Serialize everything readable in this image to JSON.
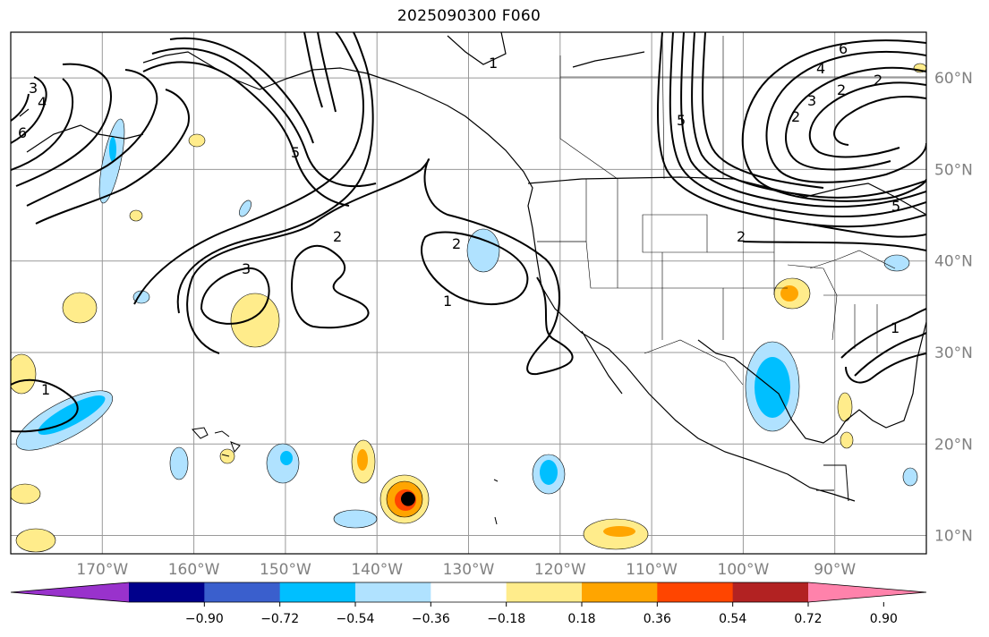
{
  "title": "2025090300 F060",
  "map": {
    "projection": "PlateCarree",
    "extent_lon": [
      -180,
      -80
    ],
    "extent_lat": [
      8,
      65
    ],
    "gridlines": true,
    "lon_ticks": [
      {
        "lon": -170,
        "label": "170°W"
      },
      {
        "lon": -160,
        "label": "160°W"
      },
      {
        "lon": -150,
        "label": "150°W"
      },
      {
        "lon": -140,
        "label": "140°W"
      },
      {
        "lon": -130,
        "label": "130°W"
      },
      {
        "lon": -120,
        "label": "120°W"
      },
      {
        "lon": -110,
        "label": "110°W"
      },
      {
        "lon": -100,
        "label": "100°W"
      },
      {
        "lon": -90,
        "label": "90°W"
      }
    ],
    "lat_ticks": [
      {
        "lat": 10,
        "label": "10°N"
      },
      {
        "lat": 20,
        "label": "20°N"
      },
      {
        "lat": 30,
        "label": "30°N"
      },
      {
        "lat": 40,
        "label": "40°N"
      },
      {
        "lat": 50,
        "label": "50°N"
      },
      {
        "lat": 60,
        "label": "60°N"
      }
    ],
    "tick_label_color": "#808080",
    "contour_labels": [
      "1",
      "2",
      "3",
      "4",
      "5",
      "6"
    ],
    "storm_marker": {
      "lon": -136.6,
      "lat": 14,
      "color": "#000000"
    }
  },
  "colorbar": {
    "colors": [
      "#9932cc",
      "#00008b",
      "#3a5fcd",
      "#00bfff",
      "#b0e2ff",
      "#ffffff",
      "#ffec8b",
      "#ffa500",
      "#ff4500",
      "#b22222",
      "#ff82ab"
    ],
    "ticks": [
      "−0.90",
      "−0.72",
      "−0.54",
      "−0.36",
      "−0.18",
      "0.18",
      "0.36",
      "0.54",
      "0.72",
      "0.90"
    ],
    "extend": "both"
  }
}
